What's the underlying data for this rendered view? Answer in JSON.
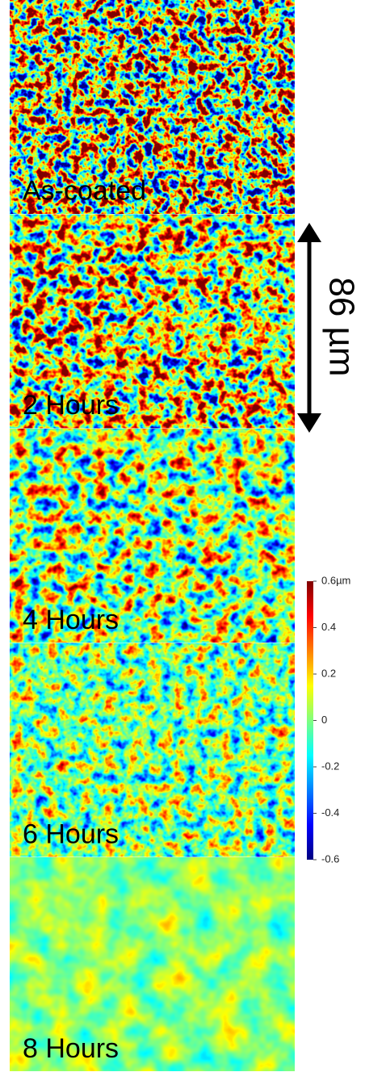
{
  "panels": [
    {
      "label": "As-coated"
    },
    {
      "label": "2 Hours"
    },
    {
      "label": "4 Hours"
    },
    {
      "label": "6 Hours"
    },
    {
      "label": "8 Hours"
    }
  ],
  "scale_bar": {
    "label": "86 µm"
  },
  "colorbar": {
    "range": [
      -0.6,
      0.6
    ],
    "ticks": [
      {
        "value": 0.6,
        "label": "0.6µm"
      },
      0.4,
      0.2,
      0,
      -0.2,
      -0.4,
      -0.6
    ]
  }
}
